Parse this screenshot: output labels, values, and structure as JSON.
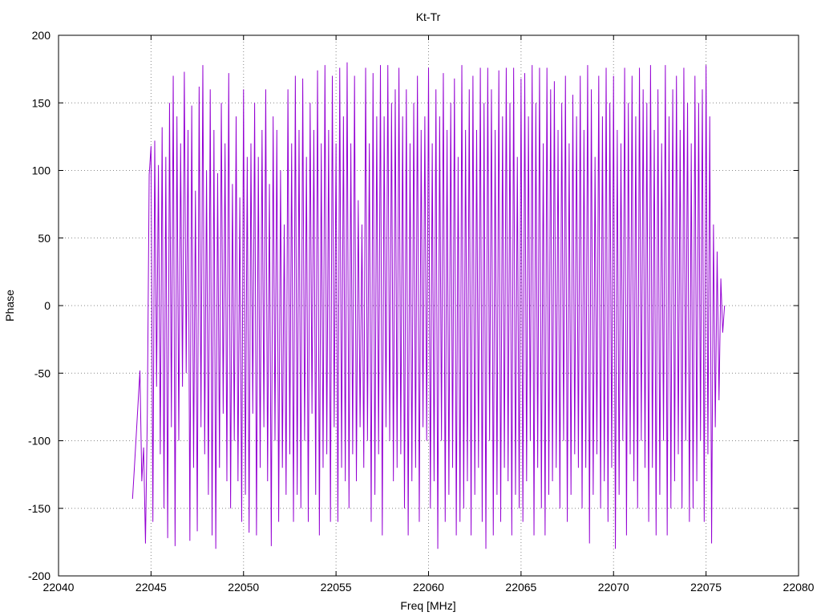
{
  "chart_data": {
    "type": "line",
    "title": "Kt-Tr",
    "xlabel": "Freq [MHz]",
    "ylabel": "Phase",
    "xlim": [
      22040,
      22080
    ],
    "ylim": [
      -200,
      200
    ],
    "xticks": [
      22040,
      22045,
      22050,
      22055,
      22060,
      22065,
      22070,
      22075,
      22080
    ],
    "yticks": [
      -200,
      -150,
      -100,
      -50,
      0,
      50,
      100,
      150,
      200
    ],
    "grid": true,
    "grid_style": "dotted",
    "series_color": "#9400d3",
    "series": [
      {
        "x_range": [
          22044,
          22076
        ],
        "values": [
          -143,
          -120,
          -96,
          -72,
          -48,
          -130,
          -105,
          -176,
          -80,
          97,
          118,
          -160,
          122,
          -60,
          104,
          -110,
          132,
          -150,
          110,
          -172,
          150,
          -90,
          170,
          -178,
          140,
          -100,
          120,
          -60,
          173,
          -50,
          130,
          -174,
          148,
          -120,
          85,
          -167,
          162,
          -90,
          178,
          -110,
          100,
          -140,
          160,
          -170,
          130,
          -180,
          98,
          -120,
          150,
          -80,
          120,
          -130,
          172,
          -150,
          90,
          -100,
          140,
          -130,
          80,
          -160,
          160,
          -140,
          110,
          -168,
          120,
          -80,
          150,
          -170,
          110,
          -120,
          130,
          -90,
          160,
          -130,
          90,
          -178,
          140,
          -100,
          130,
          -160,
          100,
          -120,
          60,
          -140,
          160,
          -110,
          120,
          -160,
          170,
          -140,
          130,
          -150,
          168,
          -100,
          110,
          -160,
          150,
          -80,
          130,
          -140,
          174,
          -170,
          120,
          -120,
          178,
          -110,
          130,
          -160,
          170,
          -90,
          120,
          -160,
          176,
          -120,
          140,
          -130,
          180,
          -150,
          120,
          -110,
          170,
          -130,
          78,
          -90,
          60,
          -120,
          176,
          -100,
          120,
          -160,
          172,
          -140,
          140,
          -110,
          178,
          -170,
          140,
          -90,
          178,
          -100,
          150,
          -130,
          160,
          -120,
          176,
          -110,
          140,
          -150,
          160,
          -170,
          120,
          -130,
          150,
          -120,
          170,
          -160,
          130,
          -90,
          140,
          -100,
          176,
          -150,
          120,
          -130,
          160,
          -180,
          140,
          -100,
          172,
          -160,
          130,
          -140,
          150,
          -120,
          168,
          -170,
          110,
          -160,
          178,
          -150,
          130,
          -130,
          160,
          -170,
          170,
          -140,
          130,
          -120,
          176,
          -160,
          150,
          -180,
          176,
          -100,
          160,
          -170,
          130,
          -140,
          174,
          -160,
          140,
          -120,
          176,
          -130,
          150,
          -170,
          176,
          -140,
          110,
          -150,
          168,
          -160,
          172,
          -130,
          140,
          -100,
          178,
          -170,
          150,
          -120,
          176,
          -150,
          120,
          -170,
          176,
          -140,
          160,
          -130,
          166,
          -120,
          130,
          -150,
          150,
          -100,
          170,
          -160,
          120,
          -140,
          156,
          -110,
          140,
          -120,
          170,
          -150,
          130,
          -120,
          178,
          -176,
          160,
          -140,
          110,
          -110,
          170,
          -150,
          140,
          -130,
          176,
          -160,
          150,
          -120,
          170,
          -180,
          130,
          -140,
          120,
          -100,
          176,
          -170,
          150,
          -110,
          170,
          -130,
          140,
          -150,
          176,
          -100,
          160,
          -120,
          150,
          -160,
          178,
          -120,
          130,
          -170,
          160,
          -140,
          120,
          -100,
          178,
          -170,
          140,
          -150,
          160,
          -130,
          170,
          -110,
          130,
          -150,
          176,
          -100,
          150,
          -160,
          120,
          -150,
          170,
          -130,
          150,
          -100,
          160,
          -160,
          178,
          -110,
          140,
          -176,
          60,
          -90,
          40,
          -70,
          20,
          -20,
          0
        ]
      }
    ]
  }
}
